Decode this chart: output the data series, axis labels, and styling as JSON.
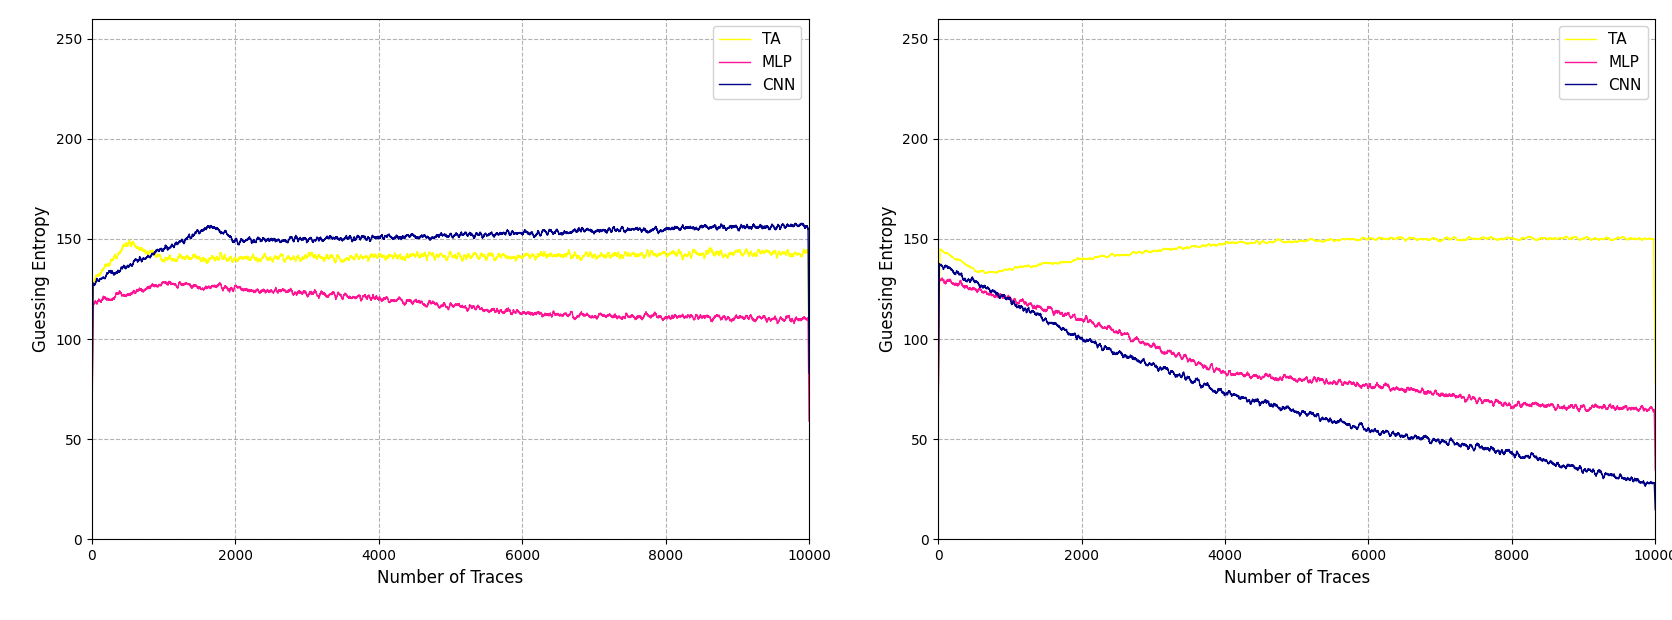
{
  "n_traces": 10000,
  "colors": {
    "TA": "#ffff00",
    "MLP": "#ff1493",
    "CNN": "#00008b"
  },
  "ylabel": "Guessing Entropy",
  "xlabel": "Number of Traces",
  "ylim": [
    0,
    260
  ],
  "yticks": [
    0,
    50,
    100,
    150,
    200,
    250
  ],
  "xlim": [
    0,
    10000
  ],
  "xticks": [
    0,
    2000,
    4000,
    6000,
    8000,
    10000
  ],
  "linewidth": 1.0,
  "figsize": [
    16.72,
    6.2
  ],
  "dpi": 100
}
